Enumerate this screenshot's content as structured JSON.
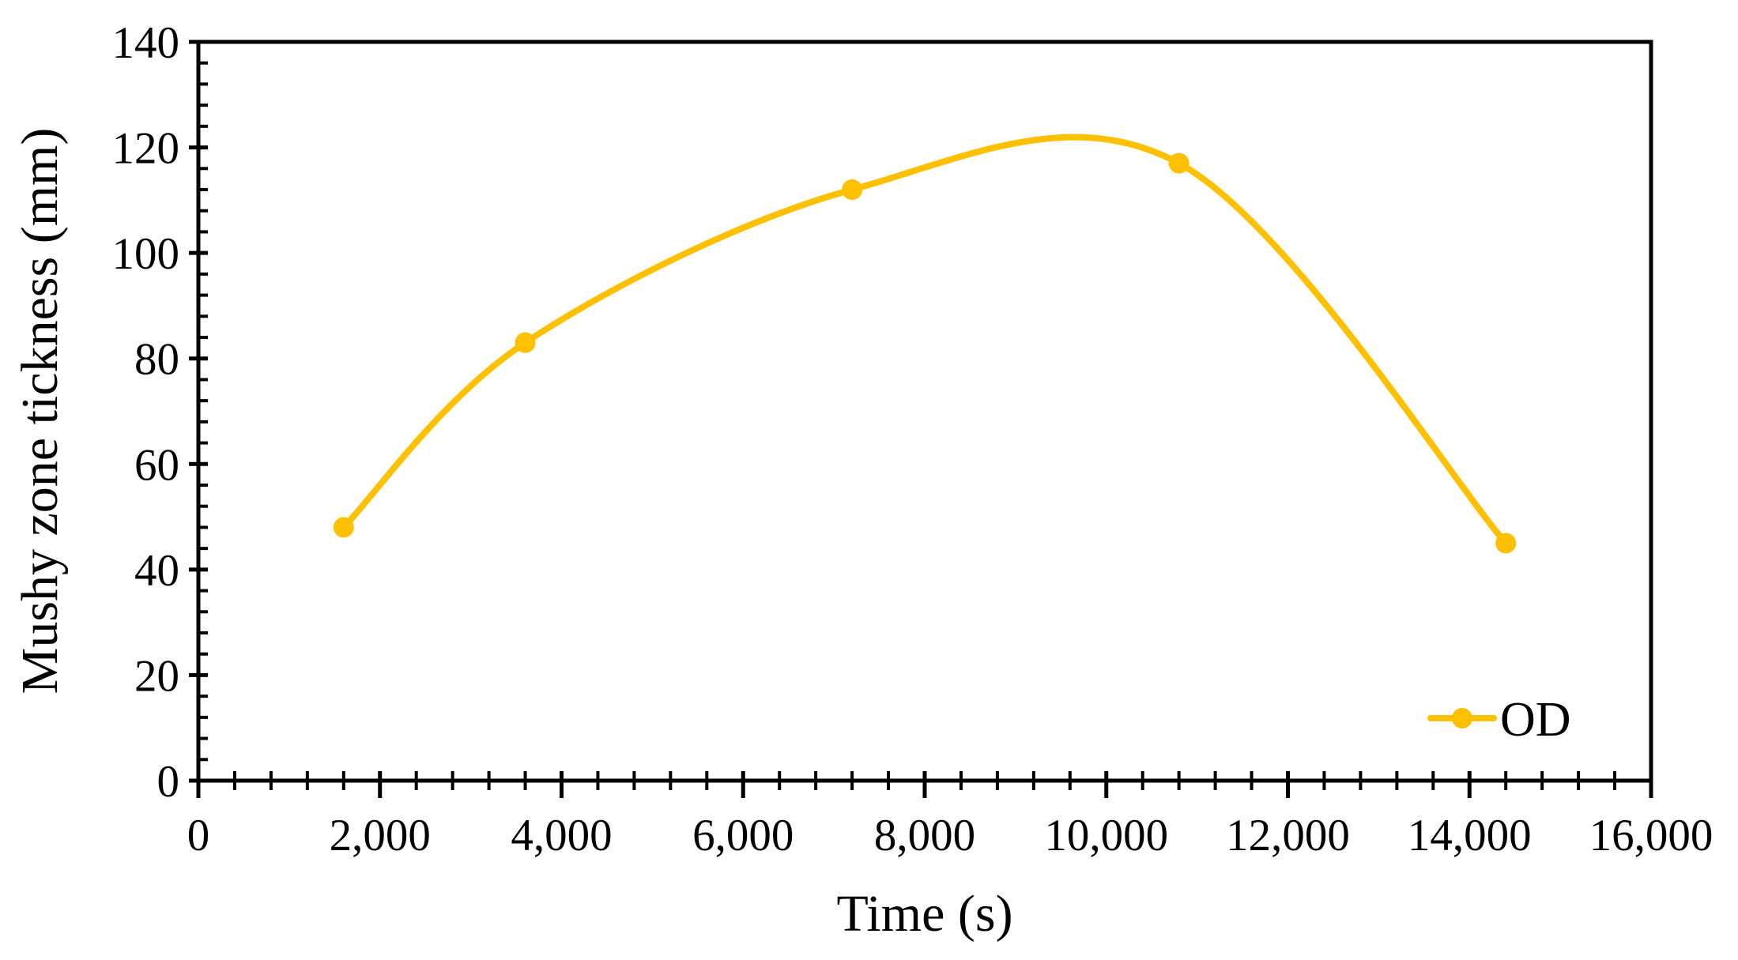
{
  "chart_data": {
    "type": "line",
    "xlabel": "Time (s)",
    "ylabel": "Mushy zone tickness (mm)",
    "xlim": [
      0,
      16000
    ],
    "ylim": [
      0,
      140
    ],
    "x_ticks": [
      0,
      2000,
      4000,
      6000,
      8000,
      10000,
      12000,
      14000,
      16000
    ],
    "x_tick_labels": [
      "0",
      "2,000",
      "4,000",
      "6,000",
      "8,000",
      "10,000",
      "12,000",
      "14,000",
      "16,000"
    ],
    "x_minor_step": 400,
    "y_ticks": [
      0,
      20,
      40,
      60,
      80,
      100,
      120,
      140
    ],
    "y_tick_labels": [
      "0",
      "20",
      "40",
      "60",
      "80",
      "100",
      "120",
      "140"
    ],
    "y_minor_step": 4,
    "grid": false,
    "smooth": true,
    "legend_position": "bottom-right",
    "series": [
      {
        "name": "OD",
        "color": "#FFC000",
        "marker": "circle",
        "x": [
          1600,
          3600,
          7200,
          10800,
          14400
        ],
        "y": [
          48,
          83,
          112,
          117,
          45
        ]
      }
    ]
  }
}
